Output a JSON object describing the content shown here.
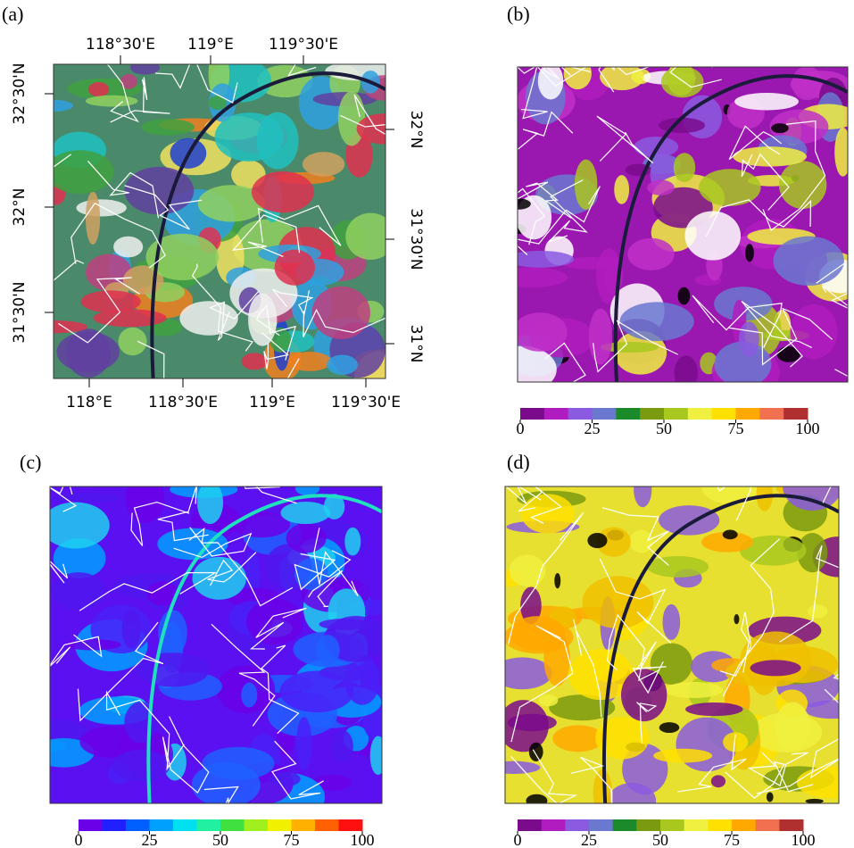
{
  "panels": [
    {
      "label": "(a)",
      "top_labels": [
        "118°30'E",
        "119°E",
        "119°30'E"
      ],
      "bottom_labels": [
        "118°E",
        "118°30'E",
        "119°E",
        "119°30'E"
      ],
      "left_labels": [
        "32°30'N",
        "32°N",
        "31°30'N"
      ],
      "right_labels": [
        "32°N",
        "31°30'N",
        "31°N"
      ]
    },
    {
      "label": "(b)",
      "colorbar": {
        "ticks": [
          0,
          25,
          50,
          75,
          100
        ],
        "colors": [
          "#7a0c8c",
          "#b11cc0",
          "#8a5ae0",
          "#6a78d0",
          "#1a8a2a",
          "#7a9a10",
          "#a8c820",
          "#f0f040",
          "#ffe000",
          "#ffa800",
          "#f07050",
          "#b03030"
        ]
      }
    },
    {
      "label": "(c)",
      "colorbar": {
        "ticks": [
          0,
          25,
          50,
          75,
          100
        ],
        "colors": [
          "#6a00e8",
          "#2020ff",
          "#0060ff",
          "#00a0ff",
          "#00e0f0",
          "#20f0a0",
          "#40e040",
          "#a0f020",
          "#f0f000",
          "#ffb000",
          "#ff6000",
          "#ff1010"
        ]
      }
    },
    {
      "label": "(d)",
      "colorbar": {
        "ticks": [
          0,
          25,
          50,
          75,
          100
        ],
        "colors": [
          "#7a0c8c",
          "#b11cc0",
          "#8a5ae0",
          "#6a78d0",
          "#1a8a2a",
          "#7a9a10",
          "#a8c820",
          "#f0f040",
          "#ffe000",
          "#ffa800",
          "#f07050",
          "#b03030"
        ]
      }
    }
  ]
}
